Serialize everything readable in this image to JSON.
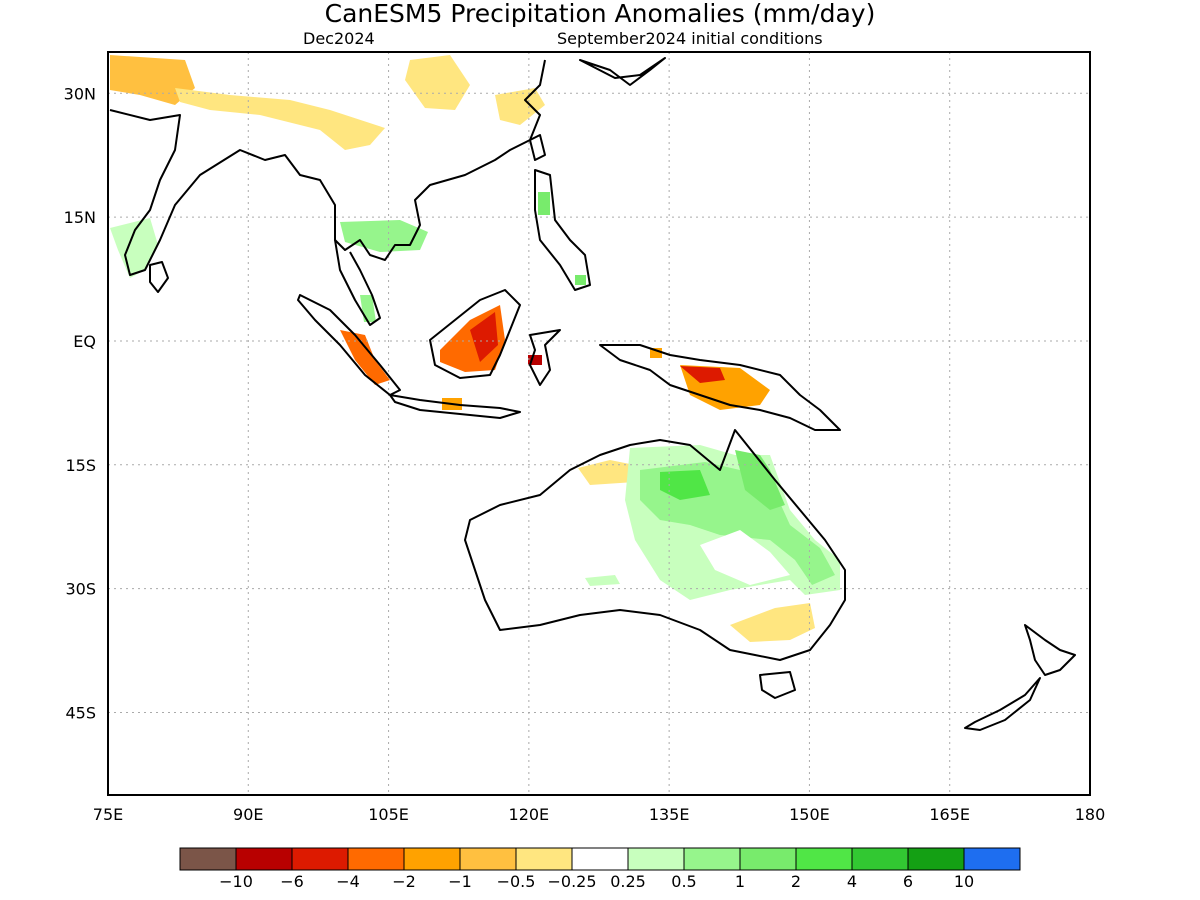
{
  "title": "CanESM5 Precipitation Anomalies (mm/day)",
  "subtitle_left": "Dec2024",
  "subtitle_right": "September2024 initial conditions",
  "x_ticks": [
    "75E",
    "90E",
    "105E",
    "120E",
    "135E",
    "150E",
    "165E",
    "180"
  ],
  "y_ticks": [
    "30N",
    "15N",
    "EQ",
    "15S",
    "30S",
    "45S"
  ],
  "colorbar": {
    "colors": [
      "#7b5548",
      "#b80000",
      "#dd1a00",
      "#ff6a00",
      "#ffa200",
      "#ffc040",
      "#ffe680",
      "#ffffff",
      "#c8ffbe",
      "#96f58c",
      "#78eb6c",
      "#50e646",
      "#32c832",
      "#14a014",
      "#1e6ef0"
    ],
    "labels": [
      "−10",
      "−6",
      "−4",
      "−2",
      "−1",
      "−0.5",
      "−0.25",
      "0.25",
      "0.5",
      "1",
      "2",
      "4",
      "6",
      "10"
    ]
  },
  "chart_data": {
    "type": "heatmap",
    "title": "CanESM5 Precipitation Anomalies (mm/day)",
    "period": "Dec2024",
    "initialization": "September2024 initial conditions",
    "lon_range": [
      75,
      180
    ],
    "lat_range": [
      -55,
      35
    ],
    "x_ticks": [
      "75E",
      "90E",
      "105E",
      "120E",
      "135E",
      "150E",
      "165E",
      "180"
    ],
    "y_ticks": [
      "30N",
      "15N",
      "EQ",
      "15S",
      "30S",
      "45S"
    ],
    "levels": [
      -10,
      -6,
      -4,
      -2,
      -1,
      -0.5,
      -0.25,
      0.25,
      0.5,
      1,
      2,
      4,
      6,
      10
    ],
    "anomaly_regions": [
      {
        "region": "Borneo",
        "value": -2
      },
      {
        "region": "Borneo core",
        "value": -4
      },
      {
        "region": "Sumatra",
        "value": -2
      },
      {
        "region": "Sulawesi",
        "value": -4
      },
      {
        "region": "New Guinea",
        "value": -2
      },
      {
        "region": "New Guinea core",
        "value": -4
      },
      {
        "region": "NW Australia",
        "value": -0.25
      },
      {
        "region": "SE Australia",
        "value": -0.25
      },
      {
        "region": "Tibet",
        "value": -0.5
      },
      {
        "region": "North Australia",
        "value": 2
      },
      {
        "region": "Queensland",
        "value": 1
      },
      {
        "region": "Indochina",
        "value": 1
      },
      {
        "region": "Philippines",
        "value": 1
      },
      {
        "region": "South India",
        "value": 0.5
      }
    ],
    "grid": true
  }
}
